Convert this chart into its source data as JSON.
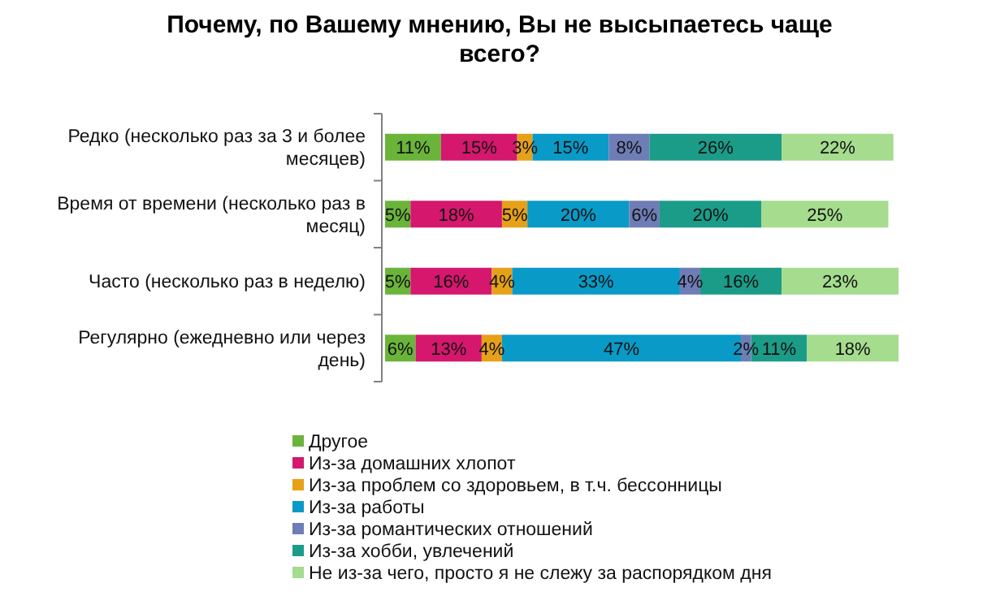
{
  "chart_data": {
    "type": "bar",
    "orientation": "horizontal",
    "stacked": true,
    "title": "Почему, по Вашему мнению, Вы не высыпаетесь чаще всего?",
    "categories": [
      "Редко (несколько раз за 3 и более месяцев)",
      "Время от времени (несколько раз в месяц)",
      "Часто (несколько раз в неделю)",
      "Регулярно (ежедневно или через день)"
    ],
    "series": [
      {
        "name": "Другое",
        "color": "#6ab43a",
        "values": [
          11,
          5,
          5,
          6
        ],
        "value_labels": [
          "11%",
          "5%",
          "5%",
          "6%"
        ]
      },
      {
        "name": "Из-за домашних хлопот",
        "color": "#d5176d",
        "values": [
          15,
          18,
          16,
          13
        ],
        "value_labels": [
          "15%",
          "18%",
          "16%",
          "13%"
        ]
      },
      {
        "name": "Из-за проблем со здоровьем, в т.ч. бессонницы",
        "color": "#e6a118",
        "values": [
          3,
          5,
          4,
          4
        ],
        "value_labels": [
          "3%",
          "5%",
          "4%",
          "4%"
        ]
      },
      {
        "name": "Из-за работы",
        "color": "#0a9ac7",
        "values": [
          15,
          20,
          33,
          47
        ],
        "value_labels": [
          "15%",
          "20%",
          "33%",
          "47%"
        ]
      },
      {
        "name": "Из-за романтических отношений",
        "color": "#6f7db6",
        "values": [
          8,
          6,
          4,
          2
        ],
        "value_labels": [
          "8%",
          "6%",
          "4%",
          "2%"
        ]
      },
      {
        "name": "Из-за хобби, увлечений",
        "color": "#1b9c88",
        "values": [
          26,
          20,
          16,
          11
        ],
        "value_labels": [
          "26%",
          "20%",
          "16%",
          "11%"
        ]
      },
      {
        "name": "Не из-за чего, просто я не слежу за распорядком дня",
        "color": "#a5dc8e",
        "values": [
          22,
          25,
          23,
          18
        ],
        "value_labels": [
          "22%",
          "25%",
          "23%",
          "18%"
        ]
      }
    ],
    "legend": "bottom"
  }
}
